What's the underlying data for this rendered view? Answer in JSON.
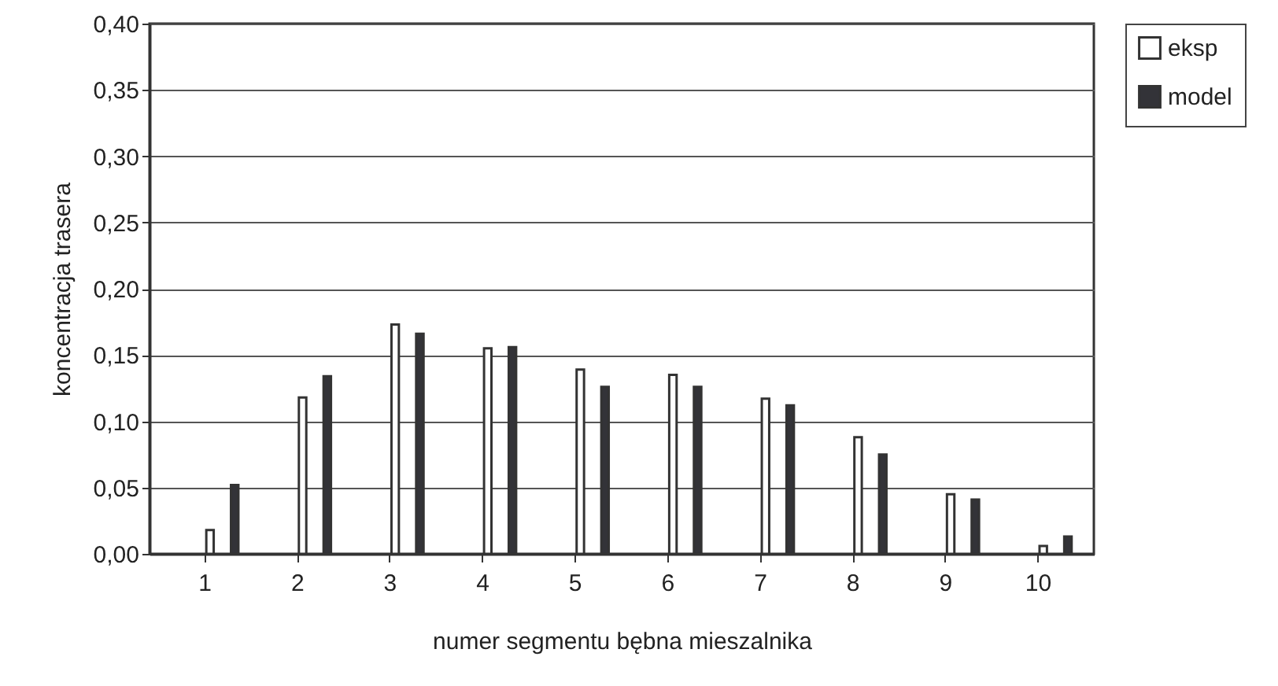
{
  "chart_data": {
    "type": "bar",
    "xlabel": "numer segmentu bębna mieszalnika",
    "ylabel": "koncentracja trasera",
    "categories": [
      "1",
      "2",
      "3",
      "4",
      "5",
      "6",
      "7",
      "8",
      "9",
      "10"
    ],
    "series": [
      {
        "name": "eksp",
        "color": "#ffffff",
        "values": [
          0.018,
          0.118,
          0.173,
          0.155,
          0.139,
          0.135,
          0.117,
          0.088,
          0.045,
          0.006
        ]
      },
      {
        "name": "model",
        "color": "#333338",
        "values": [
          0.052,
          0.134,
          0.166,
          0.156,
          0.126,
          0.126,
          0.112,
          0.075,
          0.041,
          0.013
        ]
      }
    ],
    "ylim": [
      0,
      0.4
    ],
    "yticks": [
      {
        "value": 0,
        "label": "0,00"
      },
      {
        "value": 0.05,
        "label": "0,05"
      },
      {
        "value": 0.1,
        "label": "0,10"
      },
      {
        "value": 0.15,
        "label": "0,15"
      },
      {
        "value": 0.2,
        "label": "0,20"
      },
      {
        "value": 0.25,
        "label": "0,25"
      },
      {
        "value": 0.3,
        "label": "0,30"
      },
      {
        "value": 0.35,
        "label": "0,35"
      },
      {
        "value": 0.4,
        "label": "0,40"
      }
    ],
    "grid": "y",
    "legend": "right"
  }
}
